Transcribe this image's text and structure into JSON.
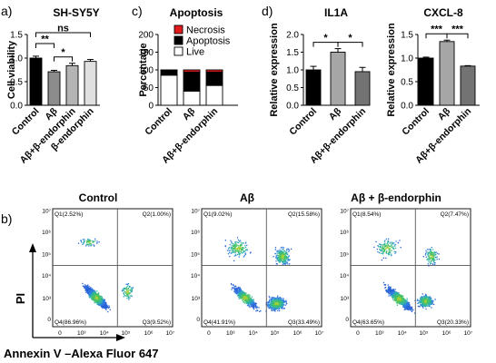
{
  "panel_letters": [
    "a)",
    "c)",
    "d)",
    "b)"
  ],
  "chart_data": [
    {
      "type": "bar",
      "panel": "a)",
      "title": "SH-SY5Y",
      "ylabel": "Cell viability",
      "ylim": [
        0,
        1.5
      ],
      "yticks": [
        "0.0",
        "0.5",
        "1.0",
        "1.5"
      ],
      "categories": [
        "Control",
        "Aβ",
        "Aβ+β-endorphin",
        "β-endorphin"
      ],
      "values": [
        1.0,
        0.71,
        0.84,
        0.93
      ],
      "errors": [
        0.04,
        0.03,
        0.05,
        0.04
      ],
      "colors": [
        "#000000",
        "#8c8c8c",
        "#b4b4b4",
        "#e0e0e0"
      ],
      "significance": [
        {
          "from": 0,
          "to": 1,
          "label": "**"
        },
        {
          "from": 1,
          "to": 2,
          "label": "*"
        },
        {
          "from": 0,
          "to": 3,
          "label": "ns"
        }
      ]
    },
    {
      "type": "bar",
      "panel": "c)",
      "stacked": true,
      "title": "Apoptosis",
      "ylabel": "Percentage",
      "ylim": [
        0,
        200
      ],
      "yticks": [
        "0",
        "50",
        "100",
        "150",
        "200"
      ],
      "categories": [
        "Control",
        "Aβ",
        "Aβ+β-endorphin"
      ],
      "series": [
        {
          "name": "Live",
          "values": [
            85,
            40,
            56
          ],
          "color": "#ffffff"
        },
        {
          "name": "Apoptosis",
          "values": [
            14,
            54,
            38
          ],
          "color": "#000000"
        },
        {
          "name": "Necrosis",
          "values": [
            1,
            6,
            6
          ],
          "color": "#e31a1c"
        }
      ],
      "legend_order": [
        "Necrosis",
        "Apoptosis",
        "Live"
      ],
      "legend_position": "top"
    },
    {
      "type": "bar",
      "panel": "d)",
      "title": "IL1A",
      "ylabel": "Relative expression",
      "ylim": [
        0,
        2.0
      ],
      "yticks": [
        "0.0",
        "0.5",
        "1.0",
        "1.5",
        "2.0"
      ],
      "categories": [
        "Control",
        "Aβ",
        "Aβ+β-endorphin"
      ],
      "values": [
        1.0,
        1.5,
        0.95
      ],
      "errors": [
        0.1,
        0.1,
        0.12
      ],
      "colors": [
        "#000000",
        "#a6a6a6",
        "#737373"
      ],
      "significance": [
        {
          "from": 0,
          "to": 1,
          "label": "*"
        },
        {
          "from": 1,
          "to": 2,
          "label": "*"
        }
      ]
    },
    {
      "type": "bar",
      "panel": "d)",
      "title": "CXCL-8",
      "ylabel": "Relative expression",
      "ylim": [
        0,
        1.5
      ],
      "yticks": [
        "0.0",
        "0.5",
        "1.0",
        "1.5"
      ],
      "categories": [
        "Control",
        "Aβ",
        "Aβ+β-endorphin"
      ],
      "values": [
        1.0,
        1.35,
        0.83
      ],
      "errors": [
        0.02,
        0.03,
        0.01
      ],
      "colors": [
        "#000000",
        "#a6a6a6",
        "#737373"
      ],
      "significance": [
        {
          "from": 0,
          "to": 1,
          "label": "***"
        },
        {
          "from": 1,
          "to": 2,
          "label": "***"
        }
      ]
    },
    {
      "type": "scatter",
      "panel": "b)",
      "plots": [
        {
          "title": "Control",
          "quadrants": {
            "Q1": "Q1(2.52%)",
            "Q2": "Q2(1.00%)",
            "Q3": "Q3(9.52%)",
            "Q4": "Q4(86.96%)"
          }
        },
        {
          "title": "Aβ",
          "quadrants": {
            "Q1": "Q1(9.02%)",
            "Q2": "Q2(15.58%)",
            "Q3": "Q3(33.49%)",
            "Q4": "Q4(41.91%)"
          }
        },
        {
          "title": "Aβ + β-endorphin",
          "quadrants": {
            "Q1": "Q1(8.54%)",
            "Q2": "Q2(7.47%)",
            "Q3": "Q3(20.33%)",
            "Q4": "Q4(63.65%)"
          }
        }
      ],
      "x_ticks": [
        "0",
        "10³",
        "10⁴",
        "10⁵",
        "10⁶",
        "10⁷"
      ],
      "y_ticks": [
        "0",
        "10³",
        "10⁴",
        "10⁵",
        "10⁶",
        "10⁷"
      ],
      "xlabel": "Annexin V –Alexa Fluor 647",
      "ylabel": "PI"
    }
  ]
}
